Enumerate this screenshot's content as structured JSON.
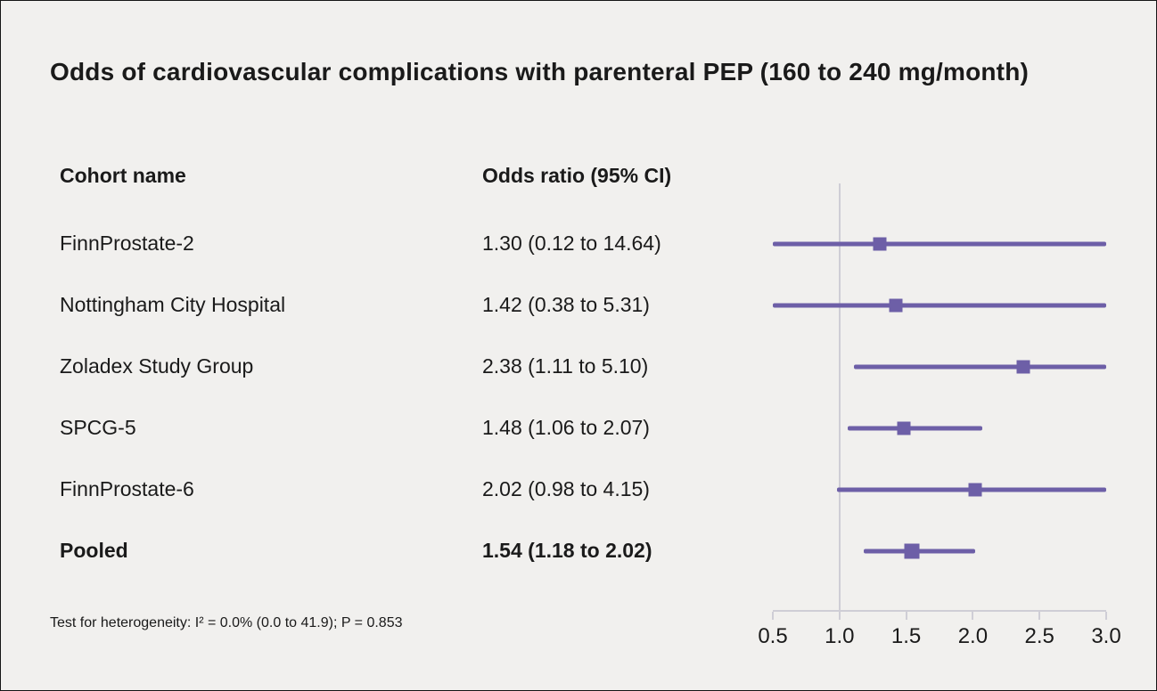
{
  "chart_data": {
    "type": "forest",
    "title": "Odds of cardiovascular complications with parenteral PEP (160 to 240 mg/month)",
    "columns": {
      "cohort": "Cohort name",
      "odds_ratio": "Odds ratio (95% CI)"
    },
    "rows": [
      {
        "cohort": "FinnProstate-2",
        "label": "1.30 (0.12 to 14.64)",
        "estimate": 1.3,
        "ci_low": 0.12,
        "ci_high": 14.64,
        "pooled": false
      },
      {
        "cohort": "Nottingham City Hospital",
        "label": "1.42 (0.38 to 5.31)",
        "estimate": 1.42,
        "ci_low": 0.38,
        "ci_high": 5.31,
        "pooled": false
      },
      {
        "cohort": "Zoladex Study Group",
        "label": "2.38 (1.11 to 5.10)",
        "estimate": 2.38,
        "ci_low": 1.11,
        "ci_high": 5.1,
        "pooled": false
      },
      {
        "cohort": "SPCG-5",
        "label": "1.48 (1.06 to 2.07)",
        "estimate": 1.48,
        "ci_low": 1.06,
        "ci_high": 2.07,
        "pooled": false
      },
      {
        "cohort": "FinnProstate-6",
        "label": "2.02 (0.98 to 4.15)",
        "estimate": 2.02,
        "ci_low": 0.98,
        "ci_high": 4.15,
        "pooled": false
      },
      {
        "cohort": "Pooled",
        "label": "1.54 (1.18 to 2.02)",
        "estimate": 1.54,
        "ci_low": 1.18,
        "ci_high": 2.02,
        "pooled": true
      }
    ],
    "x_ticks": [
      0.5,
      1.0,
      1.5,
      2.0,
      2.5,
      3.0
    ],
    "xlim": [
      0.5,
      3.0
    ],
    "reference_value": 1.0,
    "grid": false,
    "legend": "none",
    "footnote": "Test for heterogeneity: I² = 0.0% (0.0 to 41.9); P = 0.853",
    "colors": {
      "accent": "#6d5fa7",
      "axis": "#cfced6",
      "background": "#f1f0ee",
      "text": "#1a1a1a"
    }
  }
}
